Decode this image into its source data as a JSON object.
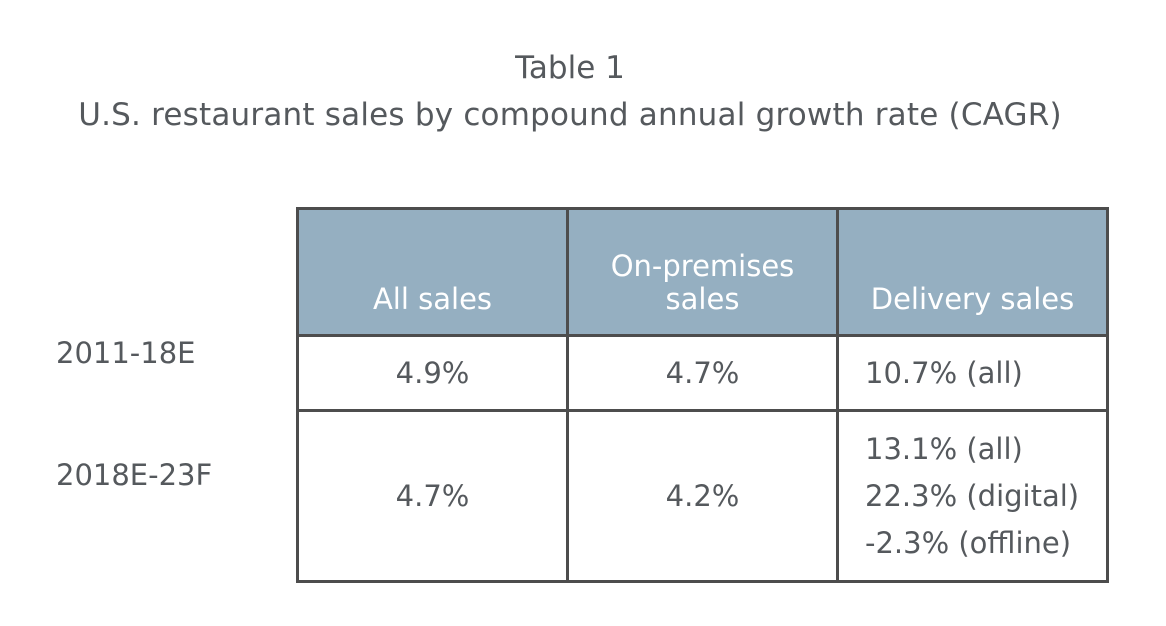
{
  "title": {
    "label": "Table 1",
    "subtitle": "U.S. restaurant sales by compound annual growth rate (CAGR)"
  },
  "table": {
    "headers": [
      "All sales",
      "On-premises sales",
      "Delivery sales"
    ],
    "rows": [
      {
        "label": "2011-18E",
        "all_sales": "4.9%",
        "on_premises": "4.7%",
        "delivery": [
          "10.7% (all)"
        ]
      },
      {
        "label": "2018E-23F",
        "all_sales": "4.7%",
        "on_premises": "4.2%",
        "delivery": [
          "13.1% (all)",
          "22.3% (digital)",
          "-2.3% (offline)"
        ]
      }
    ]
  },
  "colors": {
    "header_background": "#95afc1",
    "header_text": "#ffffff",
    "body_text": "#55595d",
    "border": "#4d4d4d"
  }
}
